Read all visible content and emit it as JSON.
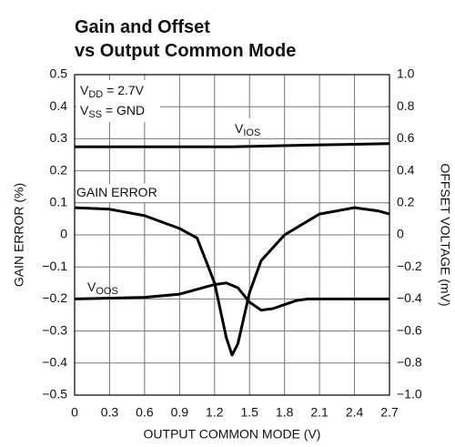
{
  "chart_data": {
    "type": "line",
    "title": [
      "Gain and Offset",
      "vs Output Common Mode"
    ],
    "x_label": "OUTPUT COMMON MODE (V)",
    "y_label": "GAIN ERROR (%)",
    "y2_label": "OFFSET VOLTAGE (mV)",
    "xlim": [
      0,
      2.7
    ],
    "xticks": [
      0,
      0.3,
      0.6,
      0.9,
      1.2,
      1.5,
      1.8,
      2.1,
      2.4,
      2.7
    ],
    "ylim": [
      -0.5,
      0.5
    ],
    "yticks": [
      {
        "value": -0.5,
        "label": "−0.5"
      },
      {
        "value": -0.4,
        "label": "−0.4"
      },
      {
        "value": -0.3,
        "label": "−0.3"
      },
      {
        "value": -0.2,
        "label": "−0.2"
      },
      {
        "value": -0.1,
        "label": "−0.1"
      },
      0,
      0.1,
      0.2,
      0.3,
      0.4,
      0.5
    ],
    "y2lim": [
      -1.0,
      1.0
    ],
    "y2ticks": [
      {
        "value": -1.0,
        "label": "−1.0"
      },
      {
        "value": -0.8,
        "label": "−0.8"
      },
      {
        "value": -0.6,
        "label": "−0.6"
      },
      {
        "value": -0.4,
        "label": "−0.4"
      },
      {
        "value": -0.2,
        "label": "−0.2"
      },
      0,
      0.2,
      0.4,
      0.6,
      0.8,
      {
        "value": 1.0,
        "label": "1.0"
      }
    ],
    "grid": true,
    "annotations": [
      {
        "main": "V",
        "sub": "DD",
        "tail": " = 2.7V"
      },
      {
        "main": "V",
        "sub": "SS",
        "tail": " = GND"
      }
    ],
    "series": [
      {
        "name": "GAIN ERROR",
        "color": "#000000",
        "axis": "y",
        "x": [
          0,
          0.3,
          0.6,
          0.9,
          1.05,
          1.2,
          1.3,
          1.35,
          1.4,
          1.5,
          1.6,
          1.8,
          2.1,
          2.4,
          2.6,
          2.7
        ],
        "values": [
          0.085,
          0.08,
          0.06,
          0.02,
          -0.01,
          -0.15,
          -0.32,
          -0.375,
          -0.34,
          -0.18,
          -0.08,
          0.0,
          0.065,
          0.085,
          0.075,
          0.065
        ]
      },
      {
        "name": "V",
        "name_sub": "OOS",
        "color": "#000000",
        "axis": "y2",
        "x": [
          0,
          0.6,
          0.9,
          1.2,
          1.3,
          1.4,
          1.5,
          1.6,
          1.7,
          1.9,
          2.0,
          2.7
        ],
        "values": [
          -0.4,
          -0.39,
          -0.37,
          -0.31,
          -0.3,
          -0.33,
          -0.42,
          -0.47,
          -0.46,
          -0.41,
          -0.4,
          -0.4
        ]
      },
      {
        "name": "V",
        "name_sub": "IOS",
        "color": "#000000",
        "axis": "y2",
        "x": [
          0,
          1.35,
          2.0,
          2.7
        ],
        "values": [
          0.55,
          0.55,
          0.56,
          0.57
        ]
      }
    ]
  }
}
